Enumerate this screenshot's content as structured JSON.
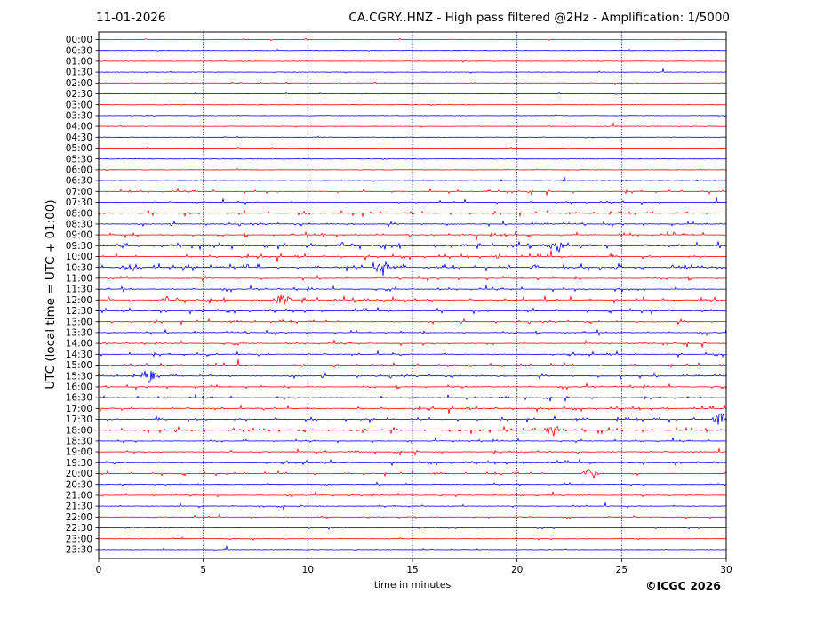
{
  "header": {
    "date": "11-01-2026",
    "title": "CA.CGRY..HNZ - High pass filtered @2Hz - Amplification: 1/5000"
  },
  "footer": {
    "copyright": "©ICGC 2026"
  },
  "colors": {
    "trace_a": "#ff0000",
    "trace_b": "#0000ff",
    "axis": "#000000",
    "grid": "#000080"
  },
  "chart_data": {
    "type": "line",
    "title": "CA.CGRY..HNZ - High pass filtered @2Hz - Amplification: 1/5000",
    "xlabel": "time in minutes",
    "ylabel": "UTC (local time = UTC + 01:00)",
    "xlim": [
      0,
      30
    ],
    "x_ticks": [
      "0",
      "5",
      "10",
      "15",
      "20",
      "25",
      "30"
    ],
    "vertical_grid_at": [
      5,
      10,
      15,
      20,
      25
    ],
    "grid": "dotted vertical lines every 5 minutes",
    "rows": [
      "00:00",
      "00:30",
      "01:00",
      "01:30",
      "02:00",
      "02:30",
      "03:00",
      "03:30",
      "04:00",
      "04:30",
      "05:00",
      "05:30",
      "06:00",
      "06:30",
      "07:00",
      "07:30",
      "08:00",
      "08:30",
      "09:00",
      "09:30",
      "10:00",
      "10:30",
      "11:00",
      "11:30",
      "12:00",
      "12:30",
      "13:00",
      "13:30",
      "14:00",
      "14:30",
      "15:00",
      "15:30",
      "16:00",
      "16:30",
      "17:00",
      "17:30",
      "18:00",
      "18:30",
      "19:00",
      "19:30",
      "20:00",
      "20:30",
      "21:00",
      "21:30",
      "22:00",
      "22:30",
      "23:00",
      "23:30"
    ],
    "row_colors_cycle": [
      "red",
      "blue"
    ],
    "activity_level": [
      0.05,
      0.05,
      0.05,
      0.05,
      0.1,
      0.05,
      0.05,
      0.05,
      0.05,
      0.05,
      0.05,
      0.05,
      0.08,
      0.08,
      0.35,
      0.25,
      0.55,
      0.5,
      0.6,
      0.8,
      0.6,
      0.9,
      0.45,
      0.45,
      0.7,
      0.5,
      0.5,
      0.45,
      0.4,
      0.45,
      0.4,
      0.55,
      0.4,
      0.3,
      0.55,
      0.6,
      0.65,
      0.3,
      0.3,
      0.45,
      0.4,
      0.3,
      0.25,
      0.2,
      0.2,
      0.2,
      0.15,
      0.1
    ],
    "notable_events": [
      {
        "row": "09:30",
        "minute": 21.9
      },
      {
        "row": "10:30",
        "minute": 13.5
      },
      {
        "row": "12:00",
        "minute": 8.8
      },
      {
        "row": "15:30",
        "minute": 2.4
      },
      {
        "row": "17:30",
        "minute": 29.7
      },
      {
        "row": "18:00",
        "minute": 21.7
      },
      {
        "row": "20:00",
        "minute": 23.5
      }
    ]
  }
}
